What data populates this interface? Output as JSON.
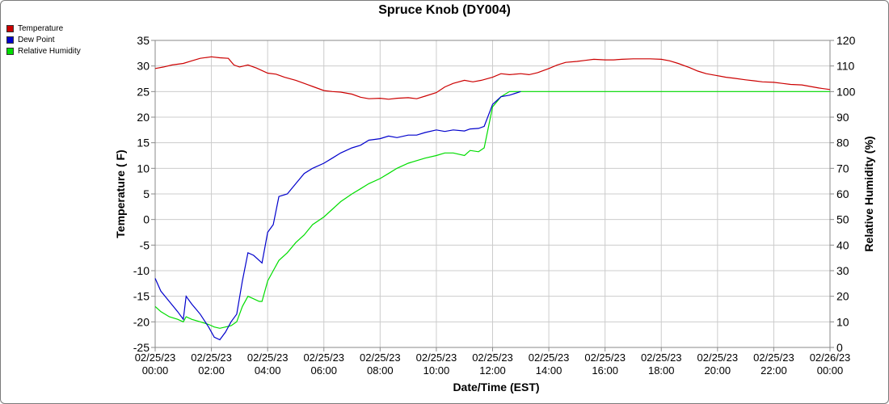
{
  "chart_data": {
    "type": "line",
    "title": "Spruce Knob (DY004)",
    "xlabel": "Date/Time (EST)",
    "ylabel_left": "Temperature ( F)",
    "ylabel_right": "Relative Humidity (%)",
    "ylim_left": [
      -25,
      35
    ],
    "ylim_right": [
      0,
      120
    ],
    "yticks_left": [
      "35",
      "30",
      "25",
      "20",
      "15",
      "10",
      "5",
      "0",
      "-5",
      "-10",
      "-15",
      "-20",
      "-25"
    ],
    "yticks_right": [
      "120",
      "110",
      "100",
      "90",
      "80",
      "70",
      "60",
      "50",
      "40",
      "30",
      "20",
      "10",
      "0"
    ],
    "xticks": [
      [
        "02/25/23",
        "00:00"
      ],
      [
        "02/25/23",
        "02:00"
      ],
      [
        "02/25/23",
        "04:00"
      ],
      [
        "02/25/23",
        "06:00"
      ],
      [
        "02/25/23",
        "08:00"
      ],
      [
        "02/25/23",
        "10:00"
      ],
      [
        "02/25/23",
        "12:00"
      ],
      [
        "02/25/23",
        "14:00"
      ],
      [
        "02/25/23",
        "16:00"
      ],
      [
        "02/25/23",
        "18:00"
      ],
      [
        "02/25/23",
        "20:00"
      ],
      [
        "02/25/23",
        "22:00"
      ],
      [
        "02/26/23",
        "00:00"
      ]
    ],
    "grid": true,
    "legend_position": "top-left",
    "series": [
      {
        "name": "Temperature",
        "color": "#cc0000",
        "axis": "left",
        "points": [
          [
            0,
            29.5
          ],
          [
            0.3,
            29.8
          ],
          [
            0.6,
            30.2
          ],
          [
            1.0,
            30.5
          ],
          [
            1.3,
            31.0
          ],
          [
            1.6,
            31.5
          ],
          [
            2.0,
            31.8
          ],
          [
            2.3,
            31.6
          ],
          [
            2.6,
            31.5
          ],
          [
            2.8,
            30.2
          ],
          [
            3.0,
            29.8
          ],
          [
            3.3,
            30.2
          ],
          [
            3.6,
            29.6
          ],
          [
            4.0,
            28.6
          ],
          [
            4.3,
            28.4
          ],
          [
            4.6,
            27.8
          ],
          [
            5.0,
            27.2
          ],
          [
            5.3,
            26.6
          ],
          [
            5.6,
            26.0
          ],
          [
            6.0,
            25.2
          ],
          [
            6.3,
            25.0
          ],
          [
            6.6,
            24.9
          ],
          [
            7.0,
            24.5
          ],
          [
            7.3,
            23.9
          ],
          [
            7.6,
            23.6
          ],
          [
            8.0,
            23.7
          ],
          [
            8.3,
            23.5
          ],
          [
            8.6,
            23.7
          ],
          [
            9.0,
            23.8
          ],
          [
            9.3,
            23.6
          ],
          [
            9.6,
            24.1
          ],
          [
            10.0,
            24.8
          ],
          [
            10.3,
            25.9
          ],
          [
            10.6,
            26.6
          ],
          [
            11.0,
            27.2
          ],
          [
            11.3,
            26.9
          ],
          [
            11.6,
            27.2
          ],
          [
            12.0,
            27.8
          ],
          [
            12.3,
            28.5
          ],
          [
            12.6,
            28.3
          ],
          [
            13.0,
            28.5
          ],
          [
            13.3,
            28.3
          ],
          [
            13.6,
            28.7
          ],
          [
            14.0,
            29.5
          ],
          [
            14.3,
            30.2
          ],
          [
            14.6,
            30.7
          ],
          [
            15.0,
            30.9
          ],
          [
            15.3,
            31.1
          ],
          [
            15.6,
            31.3
          ],
          [
            16.0,
            31.2
          ],
          [
            16.3,
            31.2
          ],
          [
            16.6,
            31.3
          ],
          [
            17.0,
            31.4
          ],
          [
            17.3,
            31.4
          ],
          [
            17.6,
            31.4
          ],
          [
            18.0,
            31.3
          ],
          [
            18.3,
            31.0
          ],
          [
            18.6,
            30.5
          ],
          [
            19.0,
            29.7
          ],
          [
            19.3,
            29.0
          ],
          [
            19.6,
            28.5
          ],
          [
            20.0,
            28.1
          ],
          [
            20.3,
            27.8
          ],
          [
            20.6,
            27.6
          ],
          [
            21.0,
            27.3
          ],
          [
            21.3,
            27.1
          ],
          [
            21.6,
            26.9
          ],
          [
            22.0,
            26.8
          ],
          [
            22.3,
            26.6
          ],
          [
            22.6,
            26.4
          ],
          [
            23.0,
            26.3
          ],
          [
            23.3,
            26.0
          ],
          [
            23.6,
            25.7
          ],
          [
            24.0,
            25.4
          ]
        ]
      },
      {
        "name": "Dew Point",
        "color": "#0000cc",
        "axis": "left",
        "points": [
          [
            0,
            -11.5
          ],
          [
            0.2,
            -14.0
          ],
          [
            0.5,
            -16.0
          ],
          [
            0.8,
            -18.0
          ],
          [
            1.0,
            -19.5
          ],
          [
            1.1,
            -15.0
          ],
          [
            1.3,
            -16.5
          ],
          [
            1.6,
            -18.5
          ],
          [
            1.9,
            -21.0
          ],
          [
            2.1,
            -23.0
          ],
          [
            2.3,
            -23.5
          ],
          [
            2.5,
            -22.0
          ],
          [
            2.7,
            -20.0
          ],
          [
            2.9,
            -18.5
          ],
          [
            3.1,
            -12.0
          ],
          [
            3.3,
            -6.5
          ],
          [
            3.5,
            -7.0
          ],
          [
            3.7,
            -8.0
          ],
          [
            3.8,
            -8.5
          ],
          [
            4.0,
            -2.5
          ],
          [
            4.2,
            -1.0
          ],
          [
            4.4,
            4.5
          ],
          [
            4.7,
            5.0
          ],
          [
            5.0,
            7.0
          ],
          [
            5.3,
            9.0
          ],
          [
            5.6,
            10.0
          ],
          [
            6.0,
            11.0
          ],
          [
            6.3,
            12.0
          ],
          [
            6.6,
            13.0
          ],
          [
            7.0,
            14.0
          ],
          [
            7.3,
            14.5
          ],
          [
            7.6,
            15.5
          ],
          [
            8.0,
            15.8
          ],
          [
            8.3,
            16.3
          ],
          [
            8.6,
            16.0
          ],
          [
            9.0,
            16.5
          ],
          [
            9.3,
            16.5
          ],
          [
            9.6,
            17.0
          ],
          [
            10.0,
            17.5
          ],
          [
            10.3,
            17.2
          ],
          [
            10.6,
            17.5
          ],
          [
            11.0,
            17.3
          ],
          [
            11.2,
            17.7
          ],
          [
            11.5,
            17.8
          ],
          [
            11.7,
            18.2
          ],
          [
            12.0,
            22.5
          ],
          [
            12.3,
            24.0
          ],
          [
            12.6,
            24.3
          ],
          [
            13.0,
            25.0
          ]
        ]
      },
      {
        "name": "Relative Humidity",
        "color": "#00dd00",
        "axis": "right",
        "points": [
          [
            0,
            16
          ],
          [
            0.2,
            14
          ],
          [
            0.5,
            12
          ],
          [
            0.8,
            11
          ],
          [
            1.0,
            10
          ],
          [
            1.1,
            12
          ],
          [
            1.3,
            11
          ],
          [
            1.6,
            10
          ],
          [
            1.9,
            9
          ],
          [
            2.1,
            8
          ],
          [
            2.3,
            7.5
          ],
          [
            2.5,
            8
          ],
          [
            2.7,
            8.5
          ],
          [
            2.9,
            10
          ],
          [
            3.1,
            16
          ],
          [
            3.3,
            20
          ],
          [
            3.5,
            19
          ],
          [
            3.7,
            18
          ],
          [
            3.8,
            18
          ],
          [
            4.0,
            26
          ],
          [
            4.2,
            30
          ],
          [
            4.4,
            34
          ],
          [
            4.7,
            37
          ],
          [
            5.0,
            41
          ],
          [
            5.3,
            44
          ],
          [
            5.6,
            48
          ],
          [
            6.0,
            51
          ],
          [
            6.3,
            54
          ],
          [
            6.6,
            57
          ],
          [
            7.0,
            60
          ],
          [
            7.3,
            62
          ],
          [
            7.6,
            64
          ],
          [
            8.0,
            66
          ],
          [
            8.3,
            68
          ],
          [
            8.6,
            70
          ],
          [
            9.0,
            72
          ],
          [
            9.3,
            73
          ],
          [
            9.6,
            74
          ],
          [
            10.0,
            75
          ],
          [
            10.3,
            76
          ],
          [
            10.6,
            76
          ],
          [
            11.0,
            75
          ],
          [
            11.2,
            77
          ],
          [
            11.5,
            76.5
          ],
          [
            11.7,
            78
          ],
          [
            12.0,
            94
          ],
          [
            12.3,
            98
          ],
          [
            12.6,
            100
          ],
          [
            13.0,
            100
          ],
          [
            24.0,
            100
          ]
        ]
      }
    ]
  }
}
